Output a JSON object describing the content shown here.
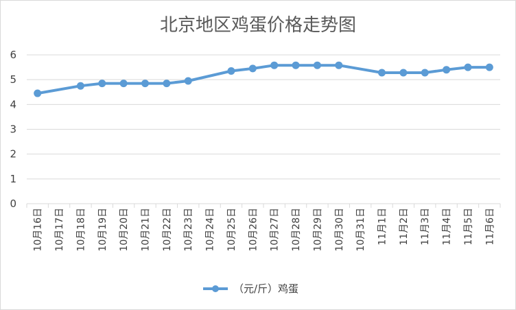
{
  "chart_data": {
    "type": "line",
    "title": "北京地区鸡蛋价格走势图",
    "xlabel": "",
    "ylabel": "",
    "ylim": [
      0,
      6
    ],
    "yticks": [
      0,
      1,
      2,
      3,
      4,
      5,
      6
    ],
    "grid": true,
    "legend_position": "bottom",
    "categories": [
      "10月16日",
      "10月17日",
      "10月18日",
      "10月19日",
      "10月20日",
      "10月21日",
      "10月22日",
      "10月23日",
      "10月24日",
      "10月25日",
      "10月26日",
      "10月27日",
      "10月28日",
      "10月29日",
      "10月30日",
      "10月31日",
      "11月1日",
      "11月2日",
      "11月3日",
      "11月4日",
      "11月5日",
      "11月6日"
    ],
    "series": [
      {
        "name": "（元/斤）鸡蛋",
        "color": "#5b9bd5",
        "values": [
          4.45,
          null,
          4.75,
          4.85,
          4.85,
          4.85,
          4.85,
          4.95,
          null,
          5.35,
          5.45,
          5.58,
          5.58,
          5.58,
          5.58,
          null,
          5.28,
          5.28,
          5.28,
          5.4,
          5.5,
          5.5
        ]
      }
    ]
  }
}
